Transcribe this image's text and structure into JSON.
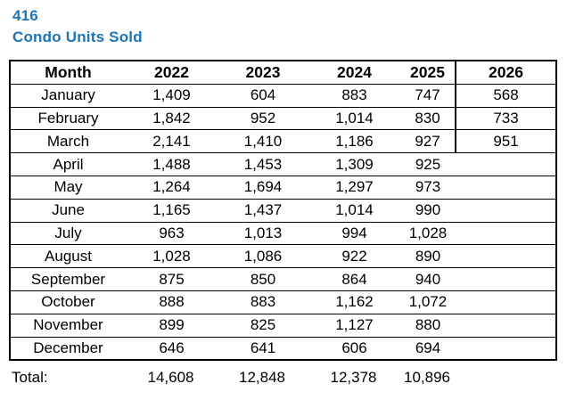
{
  "header": {
    "report_number": "416",
    "report_title": "Condo Units Sold"
  },
  "colors": {
    "title_blue": "#1B75BC",
    "table_border": "#000000",
    "text": "#000000",
    "background": "#FFFFFF"
  },
  "chart_data": {
    "type": "table",
    "title": "416 Condo Units Sold",
    "columns": [
      "Month",
      "2022",
      "2023",
      "2024",
      "2025",
      "2026"
    ],
    "rows": [
      [
        "January",
        "1,409",
        "604",
        "883",
        "747",
        "568"
      ],
      [
        "February",
        "1,842",
        "952",
        "1,014",
        "830",
        "733"
      ],
      [
        "March",
        "2,141",
        "1,410",
        "1,186",
        "927",
        "951"
      ],
      [
        "April",
        "1,488",
        "1,453",
        "1,309",
        "925",
        ""
      ],
      [
        "May",
        "1,264",
        "1,694",
        "1,297",
        "973",
        ""
      ],
      [
        "June",
        "1,165",
        "1,437",
        "1,014",
        "990",
        ""
      ],
      [
        "July",
        "963",
        "1,013",
        "994",
        "1,028",
        ""
      ],
      [
        "August",
        "1,028",
        "1,086",
        "922",
        "890",
        ""
      ],
      [
        "September",
        "875",
        "850",
        "864",
        "940",
        ""
      ],
      [
        "October",
        "888",
        "883",
        "1,162",
        "1,072",
        ""
      ],
      [
        "November",
        "899",
        "825",
        "1,127",
        "880",
        ""
      ],
      [
        "December",
        "646",
        "641",
        "606",
        "694",
        ""
      ]
    ],
    "totals": {
      "label": "Total:",
      "values": [
        "14,608",
        "12,848",
        "12,378",
        "10,896",
        ""
      ]
    },
    "layout": {
      "grid": "horizontal row lines, outer box border, vertical separator only left of 2026 column for header through March",
      "alignment": "all cells centered, total label left-aligned"
    }
  }
}
